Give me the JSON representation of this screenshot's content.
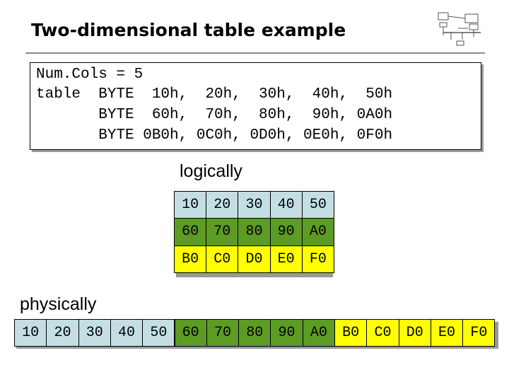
{
  "title": "Two-dimensional table example",
  "code": {
    "lines": [
      "Num.Cols = 5",
      "table  BYTE  10h,  20h,  30h,  40h,  50h",
      "       BYTE  60h,  70h,  80h,  90h, 0A0h",
      "       BYTE 0B0h, 0C0h, 0D0h, 0E0h, 0F0h"
    ]
  },
  "logical": {
    "label": "logically",
    "rows": [
      [
        "10",
        "20",
        "30",
        "40",
        "50"
      ],
      [
        "60",
        "70",
        "80",
        "90",
        "A0"
      ],
      [
        "B0",
        "C0",
        "D0",
        "E0",
        "F0"
      ]
    ],
    "row_colors": [
      "#c4dfe4",
      "#5c9b24",
      "#ffff00"
    ]
  },
  "physical": {
    "label": "physically",
    "cells": [
      "10",
      "20",
      "30",
      "40",
      "50",
      "60",
      "70",
      "80",
      "90",
      "A0",
      "B0",
      "C0",
      "D0",
      "E0",
      "F0"
    ]
  },
  "logo": {
    "icon": "diagram-thumbnail-icon"
  }
}
